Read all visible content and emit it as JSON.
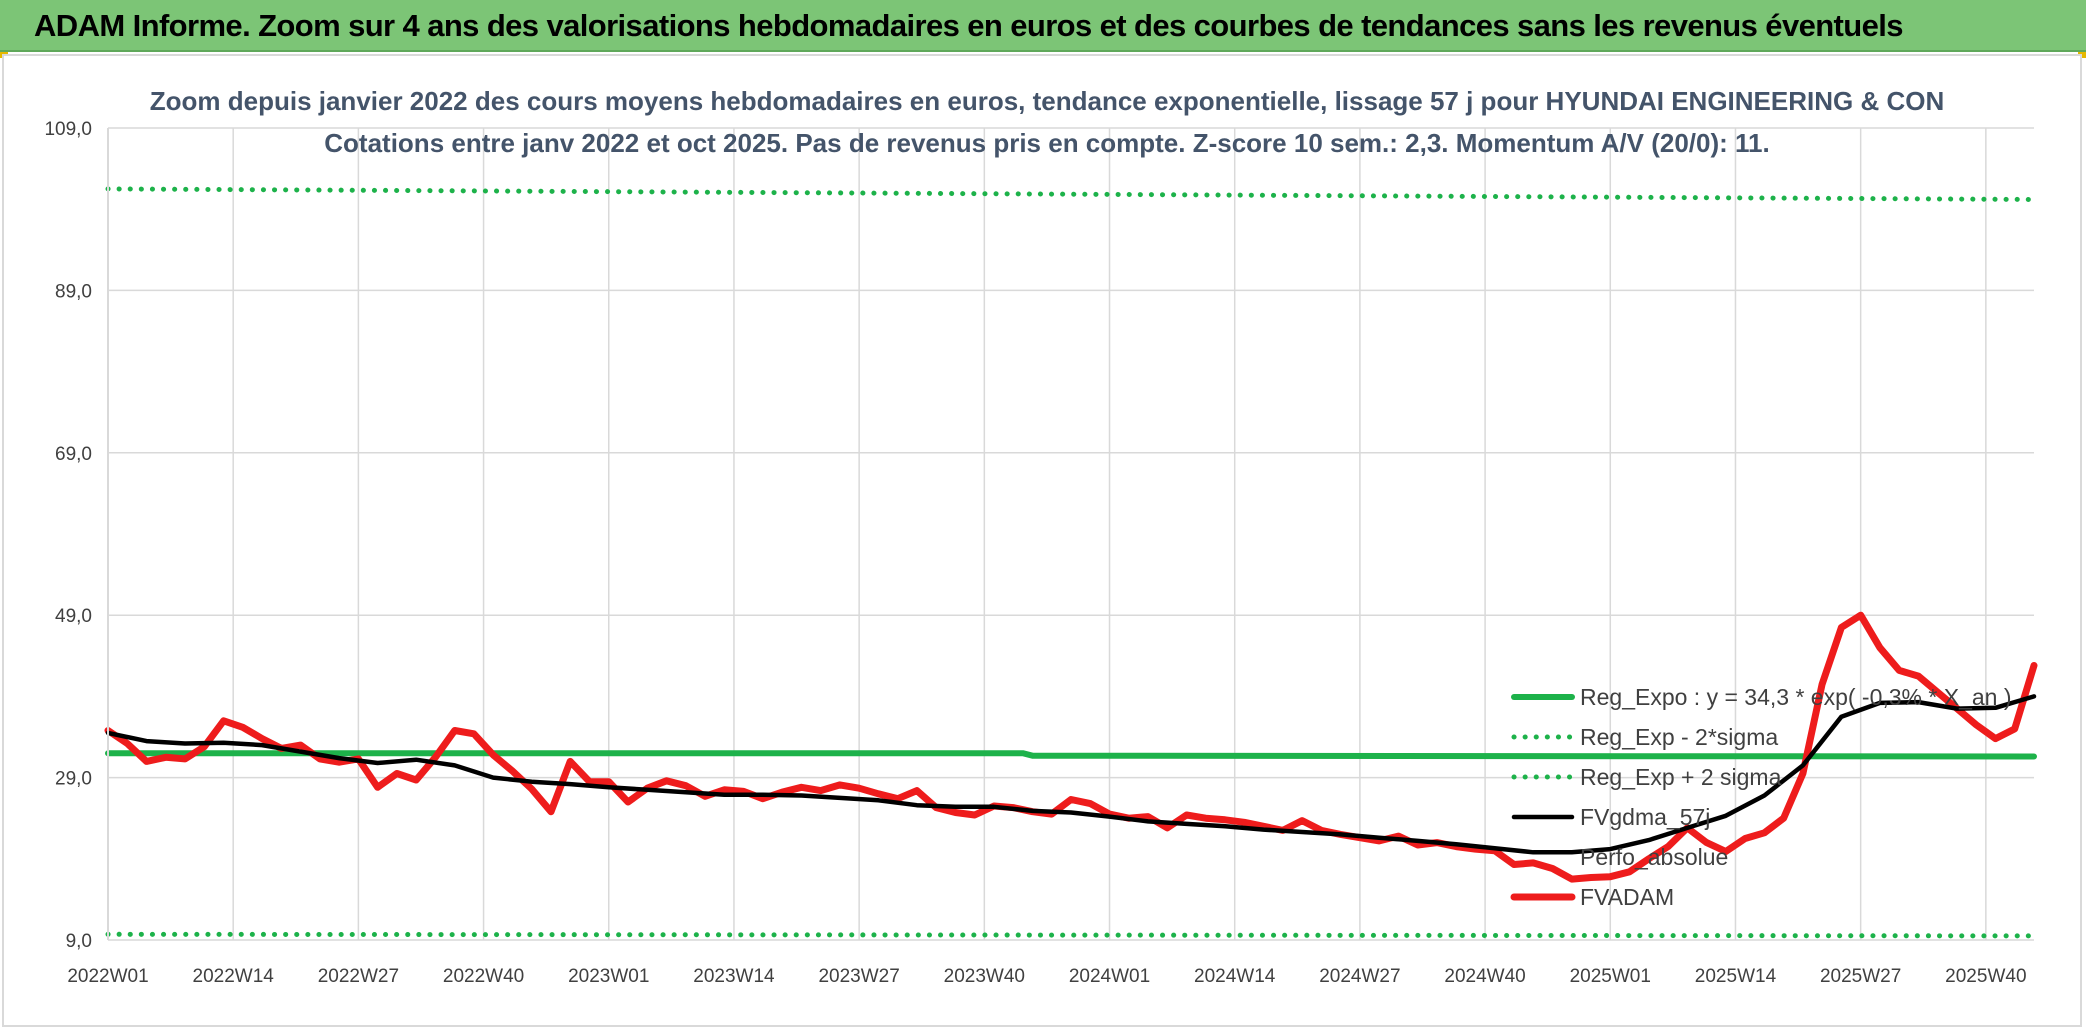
{
  "banner": {
    "title": "ADAM Informe. Zoom sur 4 ans des valorisations hebdomadaires en euros et des courbes de tendances sans les revenus éventuels"
  },
  "colors": {
    "banner_bg": "#7cc576",
    "regression": "#1db24a",
    "sigma_bands": "#1db24a",
    "moving_average": "#000000",
    "perfo_absolue": "#000000",
    "fvadam": "#ee1c1c",
    "grid": "#d9d9d9",
    "title_text": "#44546a"
  },
  "chart_data": {
    "type": "line",
    "title": "Zoom depuis janvier 2022 des cours moyens hebdomadaires en euros, tendance exponentielle, lissage 57 j pour HYUNDAI ENGINEERING & CON",
    "subtitle": "Cotations entre janv 2022 et oct 2025. Pas de revenus pris en compte. Z-score 10 sem.: 2,3. Momentum A/V (20/0): 11.",
    "xlabel": "",
    "ylabel": "",
    "ylim": [
      9,
      109
    ],
    "y_ticks": [
      "9,0",
      "29,0",
      "49,0",
      "69,0",
      "89,0",
      "109,0"
    ],
    "y_tick_values": [
      9,
      29,
      49,
      69,
      89,
      109
    ],
    "x_ticks": [
      "2022W01",
      "2022W14",
      "2022W27",
      "2022W40",
      "2023W01",
      "2023W14",
      "2023W27",
      "2023W40",
      "2024W01",
      "2024W14",
      "2024W27",
      "2024W40",
      "2025W01",
      "2025W14",
      "2025W27",
      "2025W40"
    ],
    "x_tick_index": [
      0,
      13,
      26,
      39,
      52,
      65,
      78,
      91,
      104,
      117,
      130,
      143,
      156,
      169,
      182,
      195
    ],
    "x_range": [
      0,
      200
    ],
    "grid": true,
    "legend_position": "bottom-right, inside plot",
    "series": [
      {
        "name": "Reg_Expo : y = 34,3 * exp( -0,3% * X_an )",
        "style": "solid-thick",
        "color": "#1db24a",
        "x": [
          0,
          95,
          96,
          200
        ],
        "y": [
          32.0,
          32.0,
          31.7,
          31.6
        ]
      },
      {
        "name": "Reg_Exp - 2*sigma",
        "style": "dotted",
        "color": "#1db24a",
        "x": [
          0,
          200
        ],
        "y": [
          9.7,
          9.5
        ]
      },
      {
        "name": "Reg_Exp + 2 sigma",
        "style": "dotted",
        "color": "#1db24a",
        "x": [
          0,
          200
        ],
        "y": [
          101.5,
          100.2
        ]
      },
      {
        "name": "FVgdma_57j",
        "style": "solid",
        "color": "#000000",
        "x": [
          0,
          4,
          8,
          12,
          16,
          20,
          24,
          28,
          32,
          36,
          40,
          44,
          48,
          52,
          56,
          60,
          64,
          68,
          72,
          76,
          80,
          84,
          88,
          92,
          96,
          100,
          104,
          108,
          112,
          116,
          120,
          124,
          128,
          132,
          136,
          140,
          144,
          148,
          152,
          156,
          160,
          164,
          168,
          172,
          176,
          180,
          184,
          188,
          192,
          196,
          200
        ],
        "y": [
          34.5,
          33.5,
          33.2,
          33.3,
          33.0,
          32.2,
          31.4,
          30.8,
          31.2,
          30.5,
          29.0,
          28.5,
          28.2,
          27.8,
          27.5,
          27.2,
          26.9,
          26.9,
          26.8,
          26.5,
          26.2,
          25.6,
          25.4,
          25.4,
          24.9,
          24.7,
          24.2,
          23.6,
          23.3,
          23.0,
          22.6,
          22.3,
          22.0,
          21.6,
          21.2,
          20.8,
          20.3,
          19.8,
          19.8,
          20.2,
          21.3,
          22.8,
          24.3,
          26.8,
          30.5,
          36.5,
          38.2,
          38.3,
          37.5,
          37.6,
          39.0
        ]
      },
      {
        "name": "Perfo_absolue",
        "style": "none",
        "color": "#000000",
        "x": [],
        "y": []
      },
      {
        "name": "FVADAM",
        "style": "solid-thick",
        "color": "#ee1c1c",
        "x": [
          0,
          2,
          4,
          6,
          8,
          10,
          12,
          14,
          16,
          18,
          20,
          22,
          24,
          26,
          28,
          30,
          32,
          34,
          36,
          38,
          40,
          42,
          44,
          46,
          48,
          50,
          52,
          54,
          56,
          58,
          60,
          62,
          64,
          66,
          68,
          70,
          72,
          74,
          76,
          78,
          80,
          82,
          84,
          86,
          88,
          90,
          92,
          94,
          96,
          98,
          100,
          102,
          104,
          106,
          108,
          110,
          112,
          114,
          116,
          118,
          120,
          122,
          124,
          126,
          128,
          130,
          132,
          134,
          136,
          138,
          140,
          142,
          144,
          146,
          148,
          150,
          152,
          154,
          156,
          158,
          160,
          162,
          164,
          166,
          168,
          170,
          172,
          174,
          176,
          178,
          180,
          182,
          184,
          186,
          188,
          190,
          192,
          194,
          196,
          198,
          200
        ],
        "y": [
          34.8,
          33.2,
          31.0,
          31.5,
          31.3,
          32.8,
          36.0,
          35.2,
          33.8,
          32.6,
          33.0,
          31.3,
          30.9,
          31.3,
          27.8,
          29.5,
          28.7,
          31.5,
          34.8,
          34.4,
          31.8,
          29.8,
          27.6,
          24.8,
          31.0,
          28.5,
          28.5,
          26.0,
          27.7,
          28.6,
          28.0,
          26.7,
          27.5,
          27.3,
          26.4,
          27.2,
          27.8,
          27.4,
          28.1,
          27.7,
          27.0,
          26.4,
          27.4,
          25.3,
          24.7,
          24.4,
          25.5,
          25.3,
          24.8,
          24.5,
          26.3,
          25.8,
          24.5,
          24.0,
          24.2,
          22.8,
          24.4,
          24.0,
          23.8,
          23.5,
          23.0,
          22.5,
          23.7,
          22.5,
          22.0,
          21.6,
          21.2,
          21.8,
          20.7,
          21.0,
          20.5,
          20.2,
          20.0,
          18.3,
          18.5,
          17.8,
          16.5,
          16.7,
          16.8,
          17.4,
          19.0,
          20.5,
          22.8,
          21.0,
          19.9,
          21.5,
          22.2,
          24.0,
          29.5,
          40.5,
          47.5,
          49.0,
          45.0,
          42.2,
          41.5,
          39.5,
          37.5,
          35.5,
          33.8,
          35.0,
          42.8
        ]
      }
    ]
  }
}
